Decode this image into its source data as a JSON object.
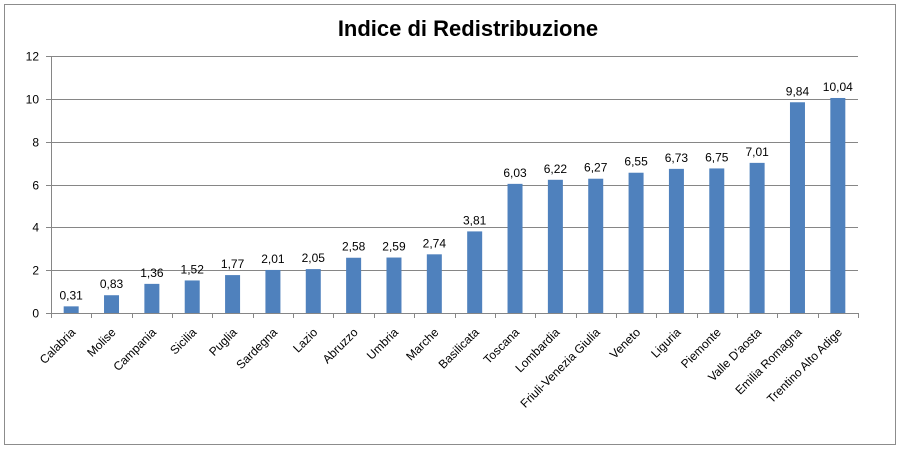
{
  "chart_data": {
    "type": "bar",
    "title": "Indice di Redistribuzione",
    "xlabel": "",
    "ylabel": "",
    "ylim": [
      0,
      12
    ],
    "yticks": [
      0,
      2,
      4,
      6,
      8,
      10,
      12
    ],
    "grid": true,
    "legend": "none",
    "bar_color": "#4F81BD",
    "gridline_color": "#868686",
    "categories": [
      "Calabria",
      "Molise",
      "Campania",
      "Sicilia",
      "Puglia",
      "Sardegna",
      "Lazio",
      "Abruzzo",
      "Umbria",
      "Marche",
      "Basilicata",
      "Toscana",
      "Lombardia",
      "Friuli-Venezia Giulia",
      "Veneto",
      "Liguria",
      "Piemonte",
      "Valle D'aosta",
      "Emilia Romagna",
      "Trentino Alto Adige"
    ],
    "values": [
      0.31,
      0.83,
      1.36,
      1.52,
      1.77,
      2.01,
      2.05,
      2.58,
      2.59,
      2.74,
      3.81,
      6.03,
      6.22,
      6.27,
      6.55,
      6.73,
      6.75,
      7.01,
      9.84,
      10.04
    ],
    "data_labels": [
      "0,31",
      "0,83",
      "1,36",
      "1,52",
      "1,77",
      "2,01",
      "2,05",
      "2,58",
      "2,59",
      "2,74",
      "3,81",
      "6,03",
      "6,22",
      "6,27",
      "6,55",
      "6,73",
      "6,75",
      "7,01",
      "9,84",
      "10,04"
    ]
  }
}
